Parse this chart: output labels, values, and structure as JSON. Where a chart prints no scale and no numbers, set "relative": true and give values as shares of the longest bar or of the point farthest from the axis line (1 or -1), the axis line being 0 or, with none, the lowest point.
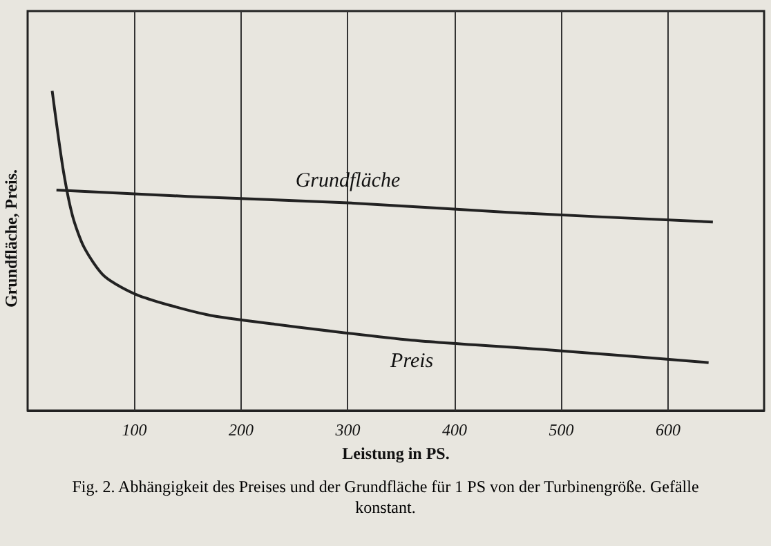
{
  "chart_data": {
    "type": "line",
    "relative": true,
    "xlabel": "Leistung in PS.",
    "ylabel": "Grundfläche, Preis.",
    "annotations": [
      "Fig. 2. Abhängigkeit des Preises und der Grundfläche für 1 PS von der Turbinengröße. Gefälle konstant."
    ],
    "xlim": [
      0,
      690
    ],
    "xticks": [
      100,
      200,
      300,
      400,
      500,
      600
    ],
    "grid": "x",
    "marker": "none",
    "line_style": "solid",
    "legend": false,
    "series": [
      {
        "name": "Grundfläche",
        "color": "#222222",
        "x": [
          27,
          150,
          300,
          450,
          642
        ],
        "values": [
          0.69,
          0.67,
          0.65,
          0.62,
          0.59
        ]
      },
      {
        "name": "Preis",
        "color": "#222222",
        "x": [
          23,
          33,
          42,
          53,
          72,
          104,
          168,
          232,
          360,
          488,
          638
        ],
        "values": [
          1,
          0.76,
          0.61,
          0.51,
          0.42,
          0.36,
          0.3,
          0.27,
          0.22,
          0.19,
          0.15
        ]
      }
    ]
  }
}
